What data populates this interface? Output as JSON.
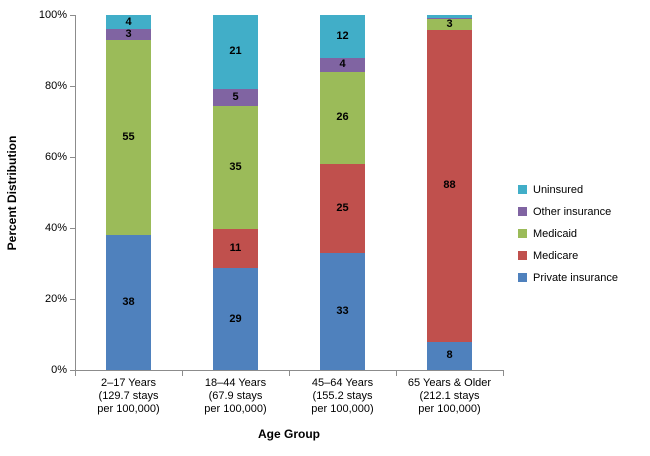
{
  "chart_data": {
    "type": "bar",
    "subtype": "stacked-100",
    "title": "",
    "xlabel": "Age Group",
    "ylabel": "Percent Distribution",
    "ylim": [
      0,
      100
    ],
    "yticks": [
      0,
      20,
      40,
      60,
      80,
      100
    ],
    "ytick_suffix": "%",
    "grid": false,
    "legend_position": "right",
    "categories": [
      {
        "lines": [
          "2–17 Years",
          "(129.7 stays",
          "per 100,000)"
        ]
      },
      {
        "lines": [
          "18–44 Years",
          "(67.9 stays",
          "per 100,000)"
        ]
      },
      {
        "lines": [
          "45–64 Years",
          "(155.2 stays",
          "per 100,000)"
        ]
      },
      {
        "lines": [
          "65 Years & Older",
          "(212.1 stays",
          "per 100,000)"
        ]
      }
    ],
    "series": [
      {
        "name": "Private insurance",
        "color": "#4f81bd",
        "values": [
          38,
          29,
          33,
          8
        ],
        "labels": [
          "38",
          "29",
          "33",
          "8"
        ]
      },
      {
        "name": "Medicare",
        "color": "#c0504d",
        "values": [
          0,
          11,
          25,
          88
        ],
        "labels": [
          "",
          "11",
          "25",
          "88"
        ]
      },
      {
        "name": "Medicaid",
        "color": "#9bbb59",
        "values": [
          55,
          35,
          26,
          3
        ],
        "labels": [
          "55",
          "35",
          "26",
          "3"
        ]
      },
      {
        "name": "Other insurance",
        "color": "#8064a2",
        "values": [
          3,
          5,
          4,
          0.4
        ],
        "labels": [
          "3",
          "5",
          "4",
          ""
        ]
      },
      {
        "name": "Uninsured",
        "color": "#41aec8",
        "values": [
          4,
          21,
          12,
          0.7
        ],
        "labels": [
          "4",
          "21",
          "12",
          ""
        ]
      }
    ],
    "legend": [
      {
        "label": "Uninsured",
        "color": "#41aec8"
      },
      {
        "label": "Other insurance",
        "color": "#8064a2"
      },
      {
        "label": "Medicaid",
        "color": "#9bbb59"
      },
      {
        "label": "Medicare",
        "color": "#c0504d"
      },
      {
        "label": "Private insurance",
        "color": "#4f81bd"
      }
    ],
    "axis_color": "#8c8c8c",
    "label_color": "#000000"
  }
}
